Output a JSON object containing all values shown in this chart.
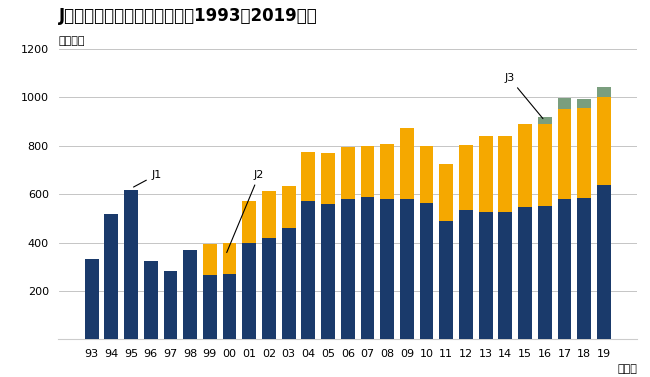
{
  "title": "Jリーグ年間入場者数の推移（1993～2019年）",
  "ylabel": "（万人）",
  "xlabel_suffix": "（年）",
  "ylim": [
    0,
    1200
  ],
  "yticks": [
    0,
    200,
    400,
    600,
    800,
    1000,
    1200
  ],
  "years": [
    "93",
    "94",
    "95",
    "96",
    "97",
    "98",
    "99",
    "00",
    "01",
    "02",
    "03",
    "04",
    "05",
    "06",
    "07",
    "08",
    "09",
    "10",
    "11",
    "12",
    "13",
    "14",
    "15",
    "16",
    "17",
    "18",
    "19"
  ],
  "j1": [
    330,
    518,
    619,
    323,
    283,
    370,
    265,
    270,
    400,
    420,
    460,
    573,
    560,
    580,
    590,
    580,
    580,
    565,
    487,
    535,
    527,
    527,
    548,
    550,
    580,
    583,
    637
  ],
  "j2": [
    0,
    0,
    0,
    0,
    0,
    0,
    130,
    130,
    170,
    195,
    175,
    200,
    210,
    215,
    210,
    228,
    293,
    232,
    237,
    268,
    312,
    315,
    340,
    340,
    370,
    375,
    365
  ],
  "j3": [
    0,
    0,
    0,
    0,
    0,
    0,
    0,
    0,
    0,
    0,
    0,
    0,
    0,
    0,
    0,
    0,
    0,
    0,
    0,
    0,
    0,
    0,
    0,
    27,
    47,
    37,
    42
  ],
  "color_j1": "#1a3a6b",
  "color_j2": "#f5a800",
  "color_j3": "#7a9e7e",
  "background_color": "#ffffff",
  "grid_color": "#bbbbbb",
  "title_fontsize": 12
}
